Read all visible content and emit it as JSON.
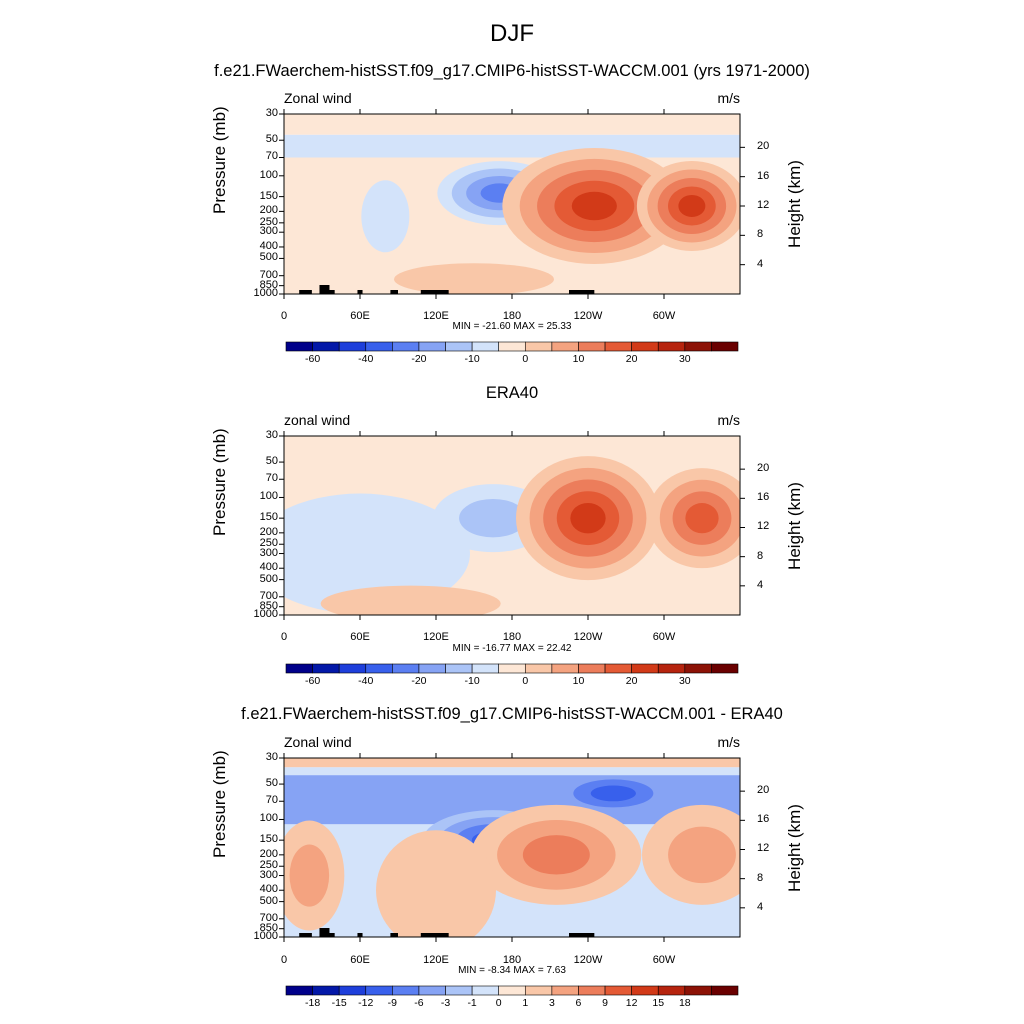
{
  "figure": {
    "main_title": "DJF"
  },
  "chart_data": [
    {
      "type": "heatmap",
      "title": "f.e21.FWaerchem-histSST.f09_g17.CMIP6-histSST-WACCM.001 (yrs 1971-2000)",
      "variable_label": "Zonal wind",
      "units": "m/s",
      "ylabel": "Pressure (mb)",
      "ylabel_right": "Height (km)",
      "xticks": [
        "0",
        "60E",
        "120E",
        "180",
        "120W",
        "60W"
      ],
      "yticks": [
        "30",
        "50",
        "70",
        "100",
        "150",
        "200",
        "250",
        "300",
        "400",
        "500",
        "700",
        "850",
        "1000"
      ],
      "height_ticks": [
        "20",
        "16",
        "12",
        "8",
        "4"
      ],
      "min_max": "MIN = -21.60  MAX =  25.33",
      "colorbar_ticks": [
        "-60",
        "-40",
        "-20",
        "-10",
        "0",
        "10",
        "20",
        "30"
      ],
      "colorbar_levels": [
        -70,
        -60,
        -50,
        -40,
        -30,
        -20,
        -15,
        -10,
        -5,
        0,
        5,
        10,
        15,
        20,
        25,
        30,
        35
      ],
      "features": [
        {
          "lon": 170,
          "p": 150,
          "value": -20
        },
        {
          "lon": 245,
          "p": 180,
          "value": 25
        },
        {
          "lon": 322,
          "p": 180,
          "value": 22
        },
        {
          "lon": 360,
          "p": 50,
          "value": -5
        },
        {
          "lon": 80,
          "p": 220,
          "value": -5
        }
      ]
    },
    {
      "type": "heatmap",
      "title": "ERA40",
      "variable_label": "zonal wind",
      "units": "m/s",
      "ylabel": "Pressure (mb)",
      "ylabel_right": "Height (km)",
      "xticks": [
        "0",
        "60E",
        "120E",
        "180",
        "120W",
        "60W"
      ],
      "yticks": [
        "30",
        "50",
        "70",
        "100",
        "150",
        "200",
        "250",
        "300",
        "400",
        "500",
        "700",
        "850",
        "1000"
      ],
      "height_ticks": [
        "20",
        "16",
        "12",
        "8",
        "4"
      ],
      "min_max": "MIN = -16.77  MAX =  22.42",
      "colorbar_ticks": [
        "-60",
        "-40",
        "-20",
        "-10",
        "0",
        "10",
        "20",
        "30"
      ],
      "colorbar_levels": [
        -70,
        -60,
        -50,
        -40,
        -30,
        -20,
        -15,
        -10,
        -5,
        0,
        5,
        10,
        15,
        20,
        25,
        30,
        35
      ],
      "features": [
        {
          "lon": 165,
          "p": 150,
          "value": -15
        },
        {
          "lon": 240,
          "p": 150,
          "value": 22
        },
        {
          "lon": 330,
          "p": 150,
          "value": 18
        }
      ]
    },
    {
      "type": "heatmap",
      "title": "f.e21.FWaerchem-histSST.f09_g17.CMIP6-histSST-WACCM.001 - ERA40",
      "variable_label": "Zonal wind",
      "units": "m/s",
      "ylabel": "Pressure (mb)",
      "ylabel_right": "Height (km)",
      "xticks": [
        "0",
        "60E",
        "120E",
        "180",
        "120W",
        "60W"
      ],
      "yticks": [
        "30",
        "50",
        "70",
        "100",
        "150",
        "200",
        "250",
        "300",
        "400",
        "500",
        "700",
        "850",
        "1000"
      ],
      "height_ticks": [
        "20",
        "16",
        "12",
        "8",
        "4"
      ],
      "min_max": "MIN = -8.34  MAX =  7.63",
      "colorbar_ticks": [
        "-18",
        "-15",
        "-12",
        "-9",
        "-6",
        "-3",
        "-1",
        "0",
        "1",
        "3",
        "6",
        "9",
        "12",
        "15",
        "18"
      ],
      "colorbar_levels": [
        -21,
        -18,
        -15,
        -12,
        -9,
        -6,
        -3,
        -1,
        0,
        1,
        3,
        6,
        9,
        12,
        15,
        18,
        21
      ],
      "features": [
        {
          "lon": 165,
          "p": 150,
          "value": -7
        },
        {
          "lon": 215,
          "p": 200,
          "value": 7
        },
        {
          "lon": 260,
          "p": 60,
          "value": -8
        },
        {
          "lon": 330,
          "p": 200,
          "value": 6
        }
      ]
    }
  ],
  "colors": {
    "colormap": [
      "#00008a",
      "#0318a8",
      "#1e3fdb",
      "#3860ec",
      "#5b7ff2",
      "#86a3f4",
      "#abc4f7",
      "#d3e3fa",
      "#fde7d6",
      "#f9c7a8",
      "#f4a380",
      "#ec7d5b",
      "#e45a35",
      "#d23a18",
      "#b6240e",
      "#8c1206",
      "#6a0000"
    ],
    "land": "#000000"
  }
}
